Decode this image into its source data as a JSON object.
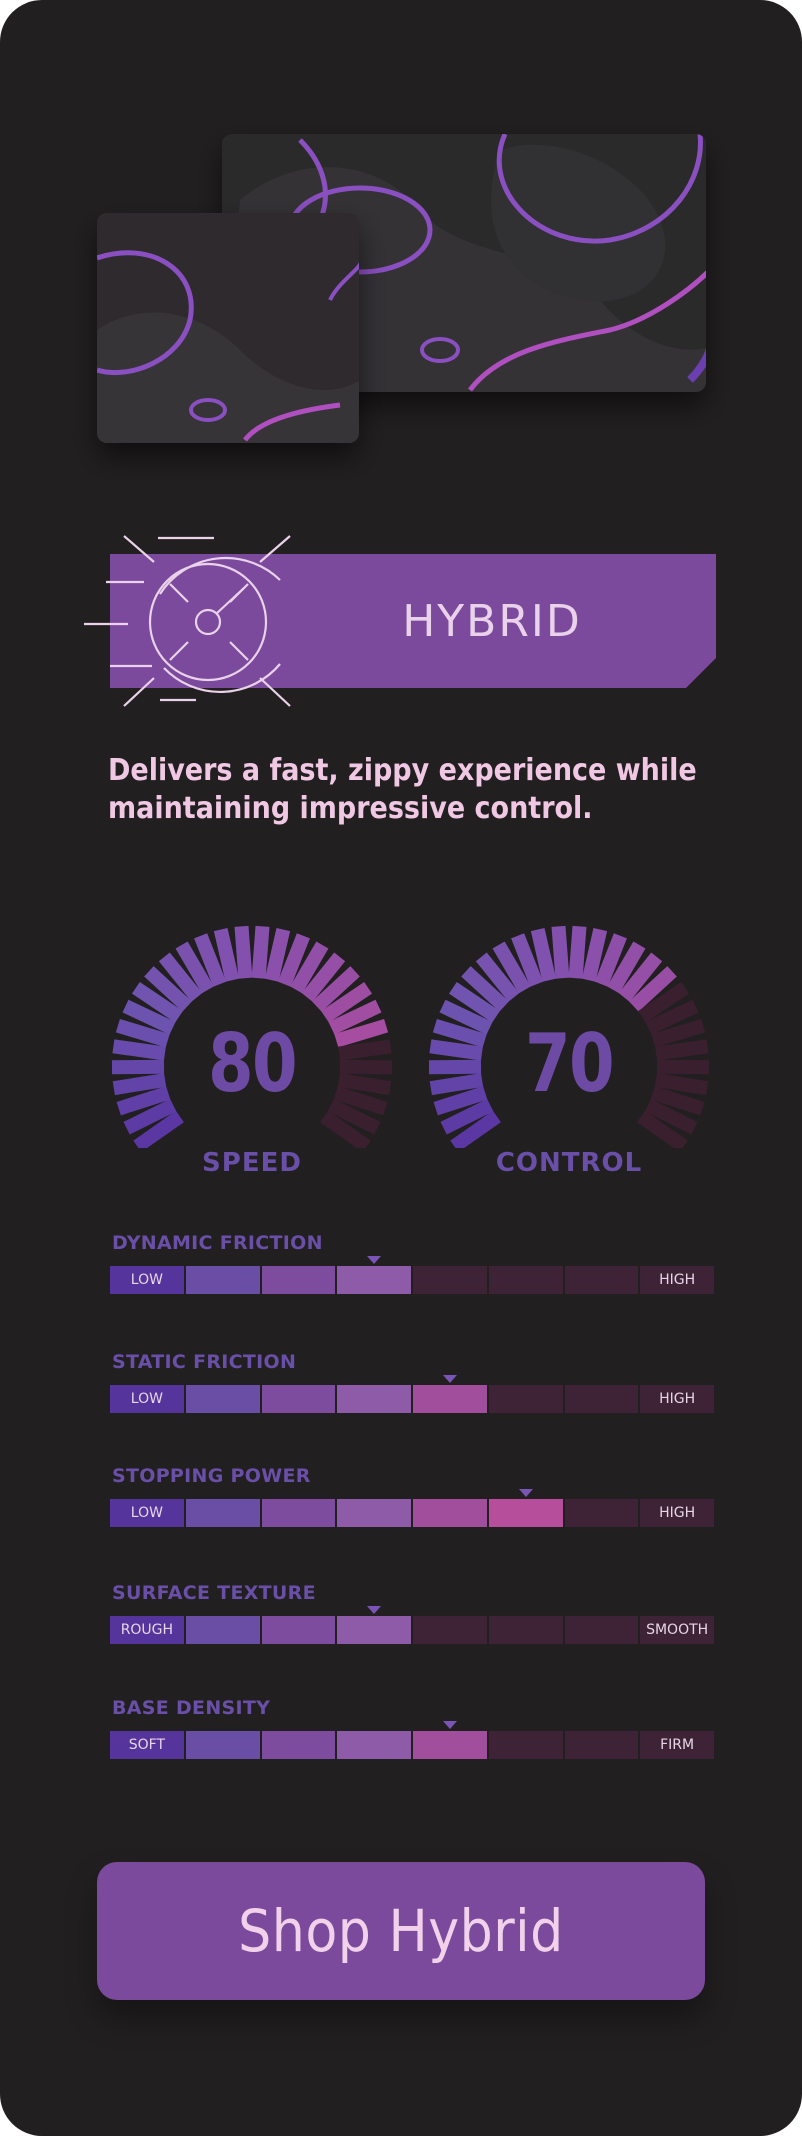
{
  "product": {
    "badge_title": "HYBRID",
    "tagline": "Delivers a fast, zippy experience while maintaining impressive control."
  },
  "gauges": [
    {
      "label": "SPEED",
      "value": "80",
      "lit_fraction": 0.8
    },
    {
      "label": "CONTROL",
      "value": "70",
      "lit_fraction": 0.7
    }
  ],
  "metrics": [
    {
      "label": "DYNAMIC FRICTION",
      "low_label": "LOW",
      "high_label": "HIGH",
      "level": 4
    },
    {
      "label": "STATIC FRICTION",
      "low_label": "LOW",
      "high_label": "HIGH",
      "level": 5
    },
    {
      "label": "STOPPING POWER",
      "low_label": "LOW",
      "high_label": "HIGH",
      "level": 6
    },
    {
      "label": "SURFACE TEXTURE",
      "low_label": "ROUGH",
      "high_label": "SMOOTH",
      "level": 4
    },
    {
      "label": "BASE DENSITY",
      "low_label": "SOFT",
      "high_label": "FIRM",
      "level": 5
    }
  ],
  "cta": {
    "label": "Shop Hybrid"
  },
  "icons": {
    "badge_icon": "speedometer-icon",
    "marker_icon": "triangle-down-icon"
  },
  "colors": {
    "background": "#221f20",
    "accent": "#7b4a9d",
    "text_light": "#f0c8e4",
    "label_purple": "#6a4fa8",
    "scale_lit": [
      "#55349b",
      "#6a4ea6",
      "#7d4c9f",
      "#8d5ba8",
      "#a14e9d",
      "#b64e9c",
      "#c24c97",
      "#c8469a"
    ],
    "scale_dim": "#3d2335"
  }
}
